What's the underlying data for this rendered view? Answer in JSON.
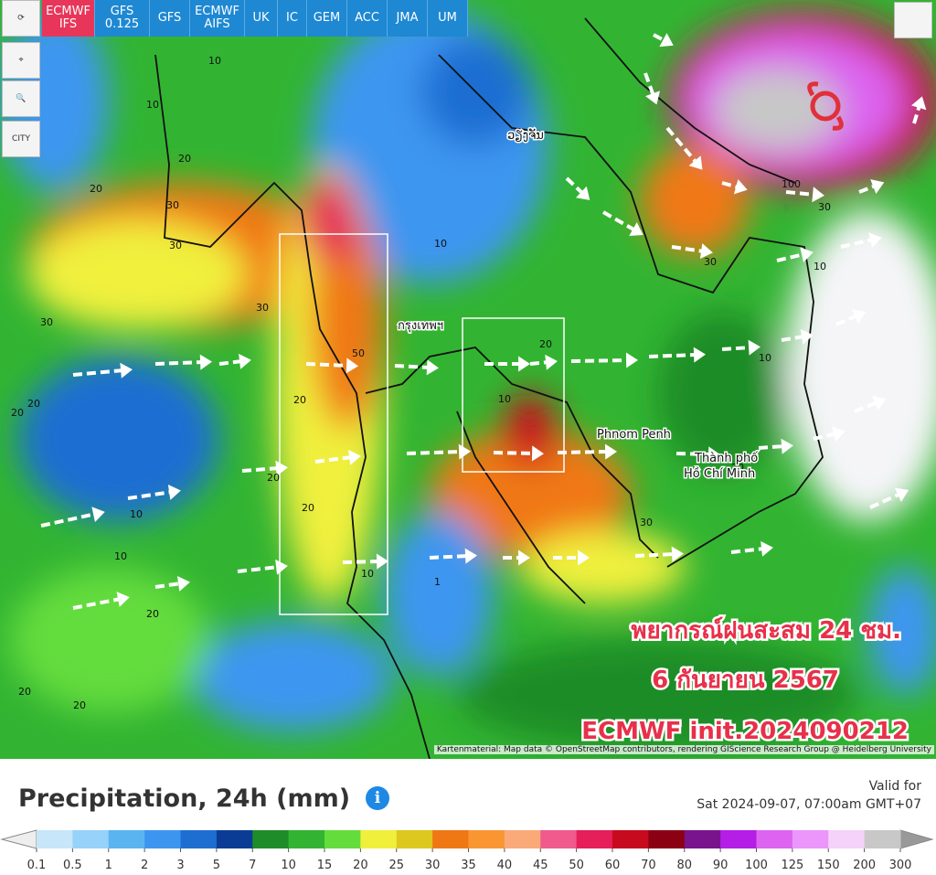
{
  "toolbar": {
    "models": [
      "ECMWF\nIFS",
      "GFS\n0.125",
      "GFS",
      "ECMWF\nAIFS",
      "UK",
      "IC",
      "GEM",
      "ACC",
      "JMA",
      "UM"
    ],
    "active": 0
  },
  "sidebar": {
    "city": "CITY"
  },
  "map": {
    "places": [
      "ວຽງຈັນ",
      "กรุงเทพฯ",
      "Phnom Penh",
      "Thành phố",
      "Hồ Chí Minh"
    ],
    "contour_labels": [
      "10",
      "20",
      "30",
      "30",
      "20",
      "10",
      "20",
      "30",
      "30",
      "50",
      "20",
      "20",
      "10",
      "20",
      "10",
      "10",
      "20",
      "30",
      "30",
      "20",
      "10",
      "100",
      "30",
      "10",
      "20",
      "10",
      "20",
      "10",
      "1",
      "20",
      "10",
      "20"
    ],
    "overlay": [
      "พยากรณ์ฝนสะสม 24 ชม.",
      "6 กันยายน 2567",
      "ECMWF init.2024090212"
    ],
    "attribution": "Kartenmaterial: Map data © OpenStreetMap contributors, rendering GIScience Research Group @ Heidelberg University"
  },
  "legend": {
    "title": "Precipitation, 24h (mm)",
    "valid_label": "Valid for",
    "valid_time": "Sat 2024-09-07, 07:00am GMT+07",
    "ticks": [
      0.1,
      0.5,
      1,
      2,
      3,
      5,
      7,
      10,
      15,
      20,
      25,
      30,
      35,
      40,
      45,
      50,
      60,
      70,
      80,
      90,
      100,
      125,
      150,
      200,
      300
    ],
    "colors": [
      "#c8e6fa",
      "#96d2fa",
      "#5ab4f0",
      "#3c96f0",
      "#1e6ed2",
      "#0a3c96",
      "#1e8c28",
      "#32b432",
      "#64dc3c",
      "#f0f03c",
      "#dcc81e",
      "#f07814",
      "#fa9632",
      "#faaa78",
      "#f05a8c",
      "#e61e5a",
      "#c80a1e",
      "#8c0014",
      "#78148c",
      "#b41ee6",
      "#dc64f0",
      "#eb96fa",
      "#f5d2fa",
      "#c8c8c8"
    ],
    "under_color": "#eeeeee",
    "over_color": "#999999"
  }
}
